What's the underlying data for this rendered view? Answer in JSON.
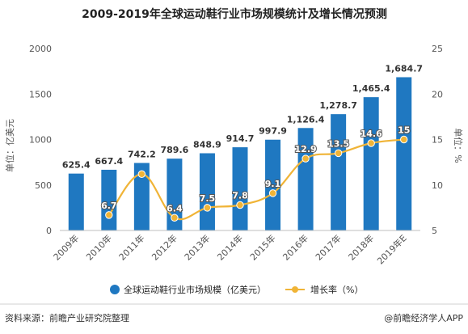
{
  "footer": {
    "source": "资料来源：前瞻产业研究院整理",
    "brand": "@前瞻经济学人APP"
  },
  "colors": {
    "bar": "#1f78c1",
    "line": "#f0b437",
    "marker_fill": "#f0b437",
    "grid": "#e6e6e6"
  },
  "chart_data": {
    "type": "bar",
    "title": "2009-2019年全球运动鞋行业市场规模统计及增长情况预测",
    "categories": [
      "2009年",
      "2010年",
      "2011年",
      "2012年",
      "2013年",
      "2014年",
      "2015年",
      "2016年",
      "2017年",
      "2018年",
      "2019年E"
    ],
    "ylabel": "单位：亿美元",
    "y2label": "单位：%",
    "ylim": [
      0,
      2000
    ],
    "y2lim": [
      5,
      25
    ],
    "yticks": [
      0,
      500,
      1000,
      1500,
      2000
    ],
    "y2ticks": [
      5,
      10,
      15,
      20,
      25
    ],
    "grid": false,
    "legend_position": "bottom",
    "series": [
      {
        "name": "全球运动鞋行业市场规模（亿美元）",
        "type": "bar",
        "axis": "left",
        "values": [
          625.4,
          667.4,
          742.2,
          789.6,
          848.9,
          914.7,
          997.9,
          1126.4,
          1278.7,
          1465.4,
          1684.7
        ],
        "labels": [
          "625.4",
          "667.4",
          "742.2",
          "789.6",
          "848.9",
          "914.7",
          "997.9",
          "1,126.4",
          "1,278.7",
          "1,465.4",
          "1,684.7"
        ]
      },
      {
        "name": "增长率（%）",
        "type": "line",
        "axis": "right",
        "values": [
          null,
          6.7,
          11.2,
          6.4,
          7.5,
          7.8,
          9.1,
          12.9,
          13.5,
          14.6,
          15
        ],
        "labels": [
          "",
          "6.7",
          "",
          "6.4",
          "7.5",
          "7.8",
          "9.1",
          "12.9",
          "13.5",
          "14.6",
          "15"
        ]
      }
    ]
  }
}
